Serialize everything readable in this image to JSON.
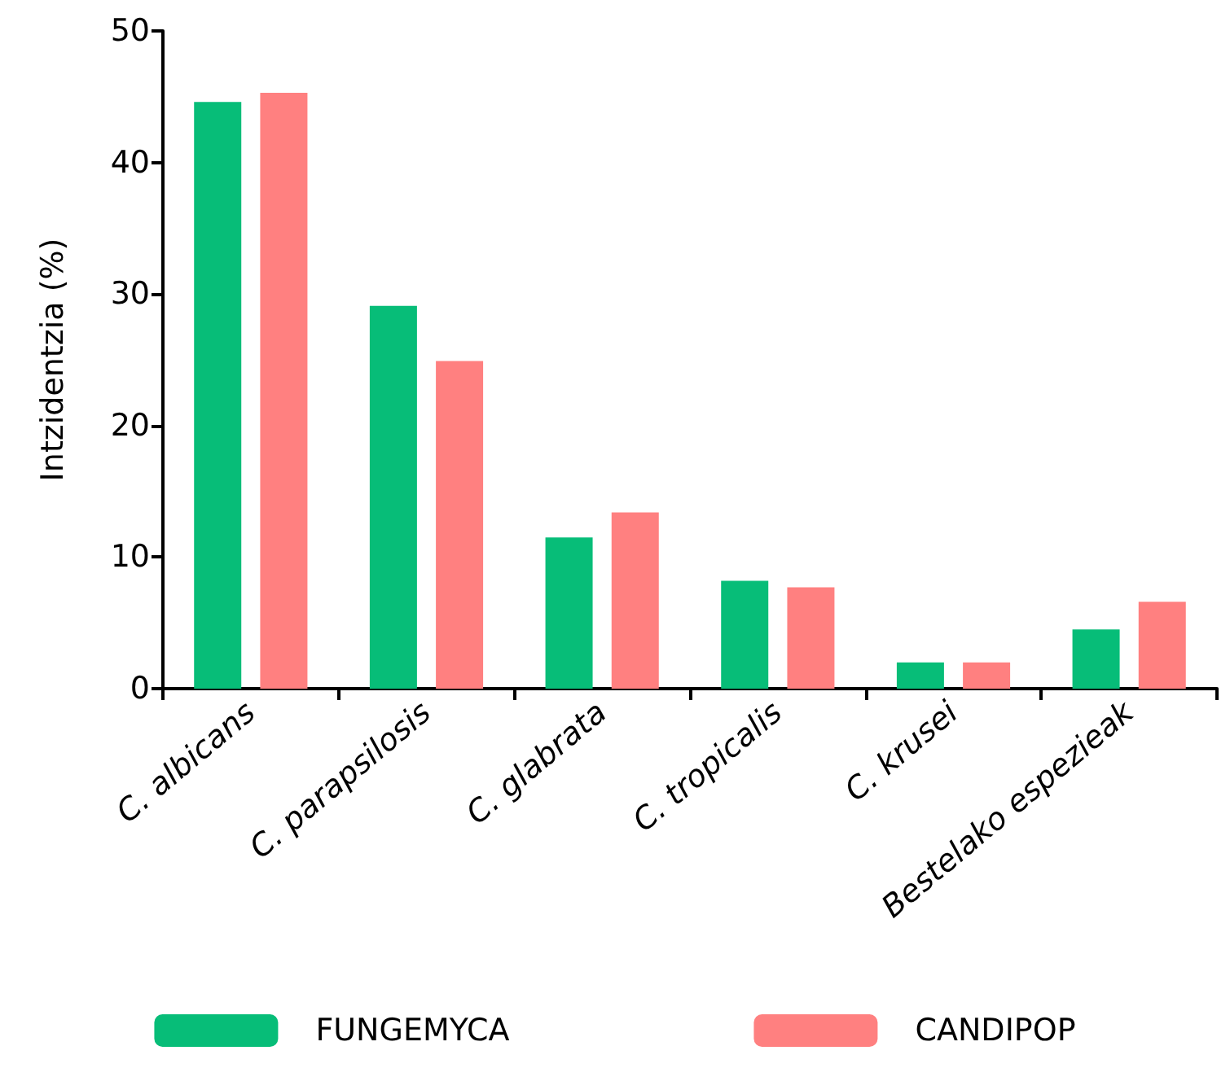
{
  "chart_data": {
    "type": "bar",
    "ylabel": "Intzidentzia (%)",
    "categories": [
      "C. albicans",
      "C. parapsilosis",
      "C. glabrata",
      "C. tropicalis",
      "C. krusei",
      "Bestelako espezieak"
    ],
    "series": [
      {
        "name": "FUNGEMYCA",
        "color": "#07bd78",
        "values": [
          44.6,
          29.1,
          11.5,
          8.2,
          2.0,
          4.5
        ]
      },
      {
        "name": "CANDIPOP",
        "color": "#ff8080",
        "values": [
          45.3,
          24.9,
          13.4,
          7.7,
          2.0,
          6.6
        ]
      }
    ],
    "ylim": [
      0,
      50
    ],
    "yticks": [
      0,
      10,
      20,
      30,
      40,
      50
    ],
    "grid": false,
    "legend": "bottom"
  }
}
